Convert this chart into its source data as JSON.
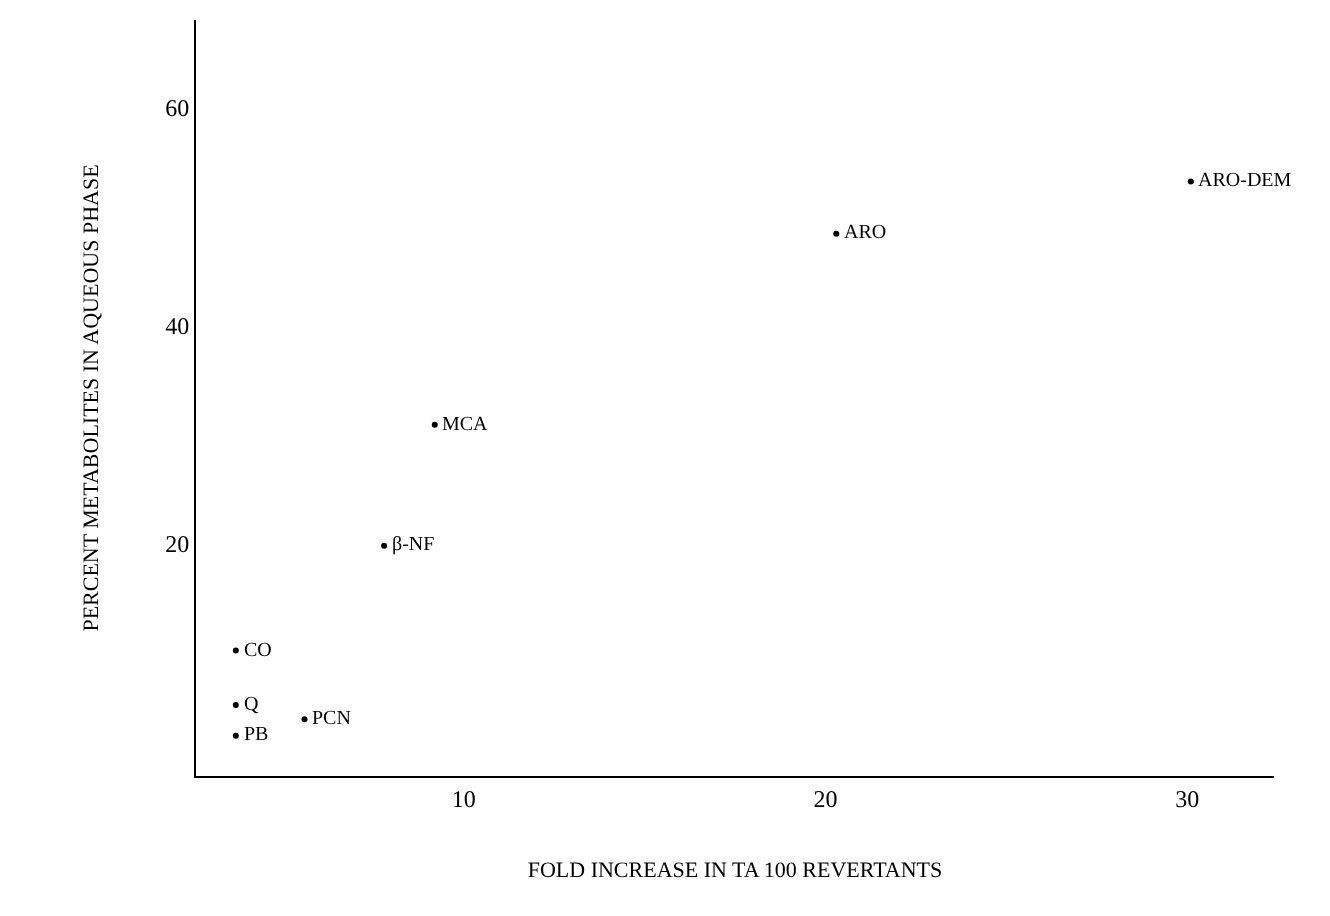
{
  "chart_data": {
    "type": "scatter",
    "xlabel": "FOLD INCREASE IN TA 100 REVERTANTS",
    "ylabel": "PERCENT METABOLITES IN AQUEOUS PHASE",
    "x": [
      3.7,
      3.7,
      3.7,
      5.6,
      7.8,
      9.2,
      20.3,
      30.1
    ],
    "series": [
      {
        "color": "#000000",
        "values": [
          10.2,
          5.2,
          2.4,
          3.9,
          19.8,
          30.9,
          48.4,
          53.2
        ]
      }
    ],
    "annotations": [
      {
        "text": "CO",
        "x": 3.7,
        "y": 10.2
      },
      {
        "text": "Q",
        "x": 3.7,
        "y": 5.2
      },
      {
        "text": "PB",
        "x": 3.7,
        "y": 2.4
      },
      {
        "text": "PCN",
        "x": 5.6,
        "y": 3.9
      },
      {
        "text": "β-NF",
        "x": 7.8,
        "y": 19.8
      },
      {
        "text": "MCA",
        "x": 9.2,
        "y": 30.9
      },
      {
        "text": "ARO",
        "x": 20.3,
        "y": 48.4
      },
      {
        "text": "ARO-DEM",
        "x": 30.1,
        "y": 53.2
      }
    ],
    "xlim": [
      2.6,
      32.4
    ],
    "ylim": [
      -1.3,
      68
    ],
    "xticks": [
      10,
      20,
      30
    ],
    "yticks": [
      20,
      40,
      60
    ],
    "marker": "circle"
  }
}
